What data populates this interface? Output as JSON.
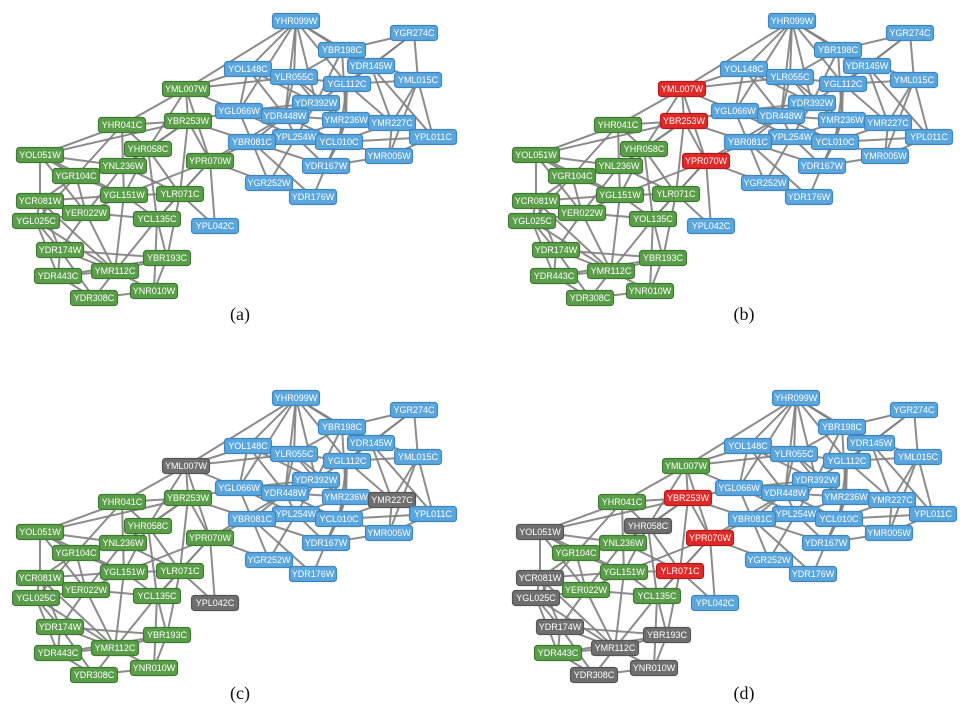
{
  "colors": {
    "cluster_a": "#5b9e4a",
    "cluster_b": "#5aa6dd",
    "selected": "#e02a2a",
    "removed": "#6f6f6f",
    "edge": "#808080"
  },
  "nodes": [
    {
      "id": "YHR099W",
      "group": "b"
    },
    {
      "id": "YGR274C",
      "group": "b"
    },
    {
      "id": "YBR198C",
      "group": "b"
    },
    {
      "id": "YDR145W",
      "group": "b"
    },
    {
      "id": "YOL148C",
      "group": "b"
    },
    {
      "id": "YLR055C",
      "group": "b"
    },
    {
      "id": "YGL112C",
      "group": "b"
    },
    {
      "id": "YML015C",
      "group": "b"
    },
    {
      "id": "YDR392W",
      "group": "b"
    },
    {
      "id": "YGL066W",
      "group": "b"
    },
    {
      "id": "YDR448W",
      "group": "b"
    },
    {
      "id": "YMR236W",
      "group": "b"
    },
    {
      "id": "YMR227C",
      "group": "b"
    },
    {
      "id": "YPL254W",
      "group": "b"
    },
    {
      "id": "YCL010C",
      "group": "b"
    },
    {
      "id": "YBR081C",
      "group": "b"
    },
    {
      "id": "YPL011C",
      "group": "b"
    },
    {
      "id": "YMR005W",
      "group": "b"
    },
    {
      "id": "YDR167W",
      "group": "b"
    },
    {
      "id": "YGR252W",
      "group": "b"
    },
    {
      "id": "YDR176W",
      "group": "b"
    },
    {
      "id": "YPL042C",
      "group": "b"
    },
    {
      "id": "YML007W",
      "group": "a"
    },
    {
      "id": "YHR041C",
      "group": "a"
    },
    {
      "id": "YBR253W",
      "group": "a"
    },
    {
      "id": "YOL051W",
      "group": "a"
    },
    {
      "id": "YHR058C",
      "group": "a"
    },
    {
      "id": "YNL236W",
      "group": "a"
    },
    {
      "id": "YGR104C",
      "group": "a"
    },
    {
      "id": "YPR070W",
      "group": "a"
    },
    {
      "id": "YCR081W",
      "group": "a"
    },
    {
      "id": "YGL151W",
      "group": "a"
    },
    {
      "id": "YLR071C",
      "group": "a"
    },
    {
      "id": "YER022W",
      "group": "a"
    },
    {
      "id": "YGL025C",
      "group": "a"
    },
    {
      "id": "YCL135C",
      "group": "a"
    },
    {
      "id": "YOL135C",
      "group": "a"
    },
    {
      "id": "YDR174W",
      "group": "a"
    },
    {
      "id": "YBR193C",
      "group": "a"
    },
    {
      "id": "YDR443C",
      "group": "a"
    },
    {
      "id": "YMR112C",
      "group": "a"
    },
    {
      "id": "YNR010W",
      "group": "a"
    },
    {
      "id": "YDR308C",
      "group": "a"
    }
  ],
  "panels": [
    {
      "caption": "(a)",
      "node_labels": {},
      "highlight": {}
    },
    {
      "caption": "(b)",
      "node_labels": {
        "YCL135C": "YOL135C",
        "YOL135C": "YGL135C"
      },
      "highlight": {
        "YML007W": "selected",
        "YBR253W": "selected",
        "YPR070W": "selected"
      }
    },
    {
      "caption": "(c)",
      "node_labels": {},
      "highlight": {
        "YML007W": "removed",
        "YMR227C": "removed",
        "YPL042C": "removed"
      }
    },
    {
      "caption": "(d)",
      "node_labels": {},
      "highlight": {
        "YBR253W": "selected",
        "YPR070W": "selected",
        "YLR071C": "selected",
        "YHR058C": "removed",
        "YOL051W": "removed",
        "YCR081W": "removed",
        "YGL025C": "removed",
        "YDR174W": "removed",
        "YBR193C": "removed",
        "YMR112C": "removed",
        "YNR010W": "removed",
        "YDR308C": "removed"
      }
    }
  ]
}
